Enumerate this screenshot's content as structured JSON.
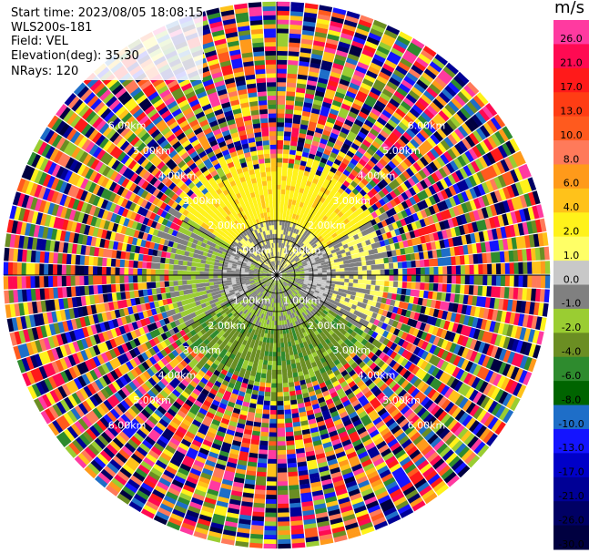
{
  "header": {
    "start_time": "Start time: 2023/08/05 18:08:15",
    "site": "WLS200s-181",
    "field": "Field: VEL",
    "elevation": "Elevation(deg): 35.30",
    "nrays": "NRays: 120"
  },
  "chart_data": {
    "type": "heatmap",
    "projection": "polar-ppi",
    "nrays": 120,
    "range_rings_km": [
      1,
      2,
      3,
      4,
      5,
      6
    ],
    "ring_labels": [
      "1.00km",
      "2.00km",
      "3.00km",
      "4.00km",
      "5.00km",
      "6.00km"
    ],
    "colorbar": {
      "unit": "m/s",
      "ticks": [
        "26.0",
        "21.0",
        "17.0",
        "13.0",
        "10.0",
        "8.0",
        "6.0",
        "4.0",
        "2.0",
        "1.0",
        "0.0",
        "-1.0",
        "-2.0",
        "-4.0",
        "-6.0",
        "-8.0",
        "-10.0",
        "-13.0",
        "-17.0",
        "-21.0",
        "-26.0",
        "-30.0"
      ],
      "colors": [
        "#ff3aa0",
        "#ff0a52",
        "#ff1a1a",
        "#ff3d14",
        "#ff5a1e",
        "#ff7a5a",
        "#ff9a1a",
        "#ffc21a",
        "#fff21a",
        "#ffff66",
        "#c8c8c8",
        "#808080",
        "#9acd32",
        "#6b8e23",
        "#2e8b2e",
        "#006400",
        "#1e6ec8",
        "#1414ff",
        "#0000c8",
        "#000096",
        "#000064",
        "#000040"
      ]
    }
  }
}
